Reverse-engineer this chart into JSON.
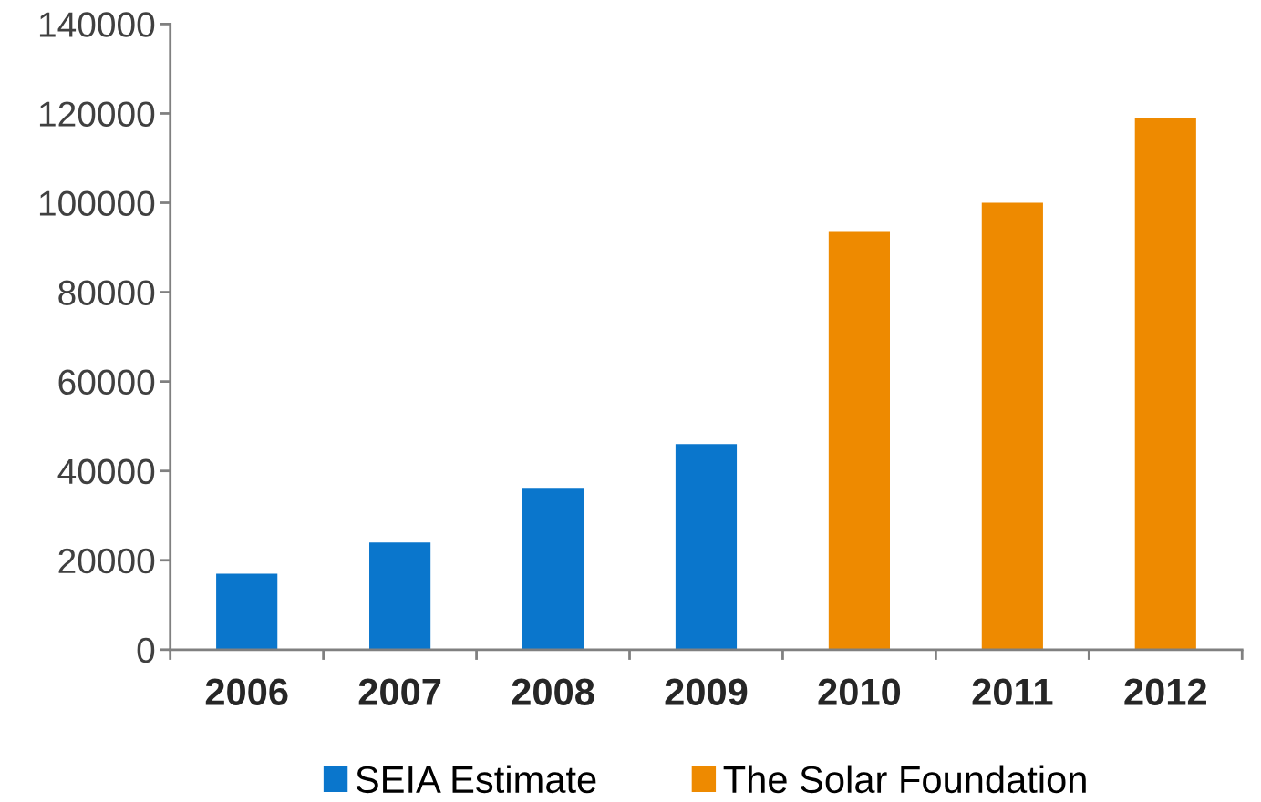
{
  "chart_data": {
    "type": "bar",
    "categories": [
      "2006",
      "2007",
      "2008",
      "2009",
      "2010",
      "2011",
      "2012"
    ],
    "series": [
      {
        "name": "SEIA Estimate",
        "color": "#0a76cc",
        "values": [
          17000,
          24000,
          36000,
          46000,
          null,
          null,
          null
        ]
      },
      {
        "name": "The Solar Foundation",
        "color": "#ee8a00",
        "values": [
          null,
          null,
          null,
          null,
          93500,
          100000,
          119000
        ]
      }
    ],
    "ylim": [
      0,
      140000
    ],
    "yticks": [
      0,
      20000,
      40000,
      60000,
      80000,
      100000,
      120000,
      140000
    ],
    "grid": false,
    "legend": "bottom"
  }
}
